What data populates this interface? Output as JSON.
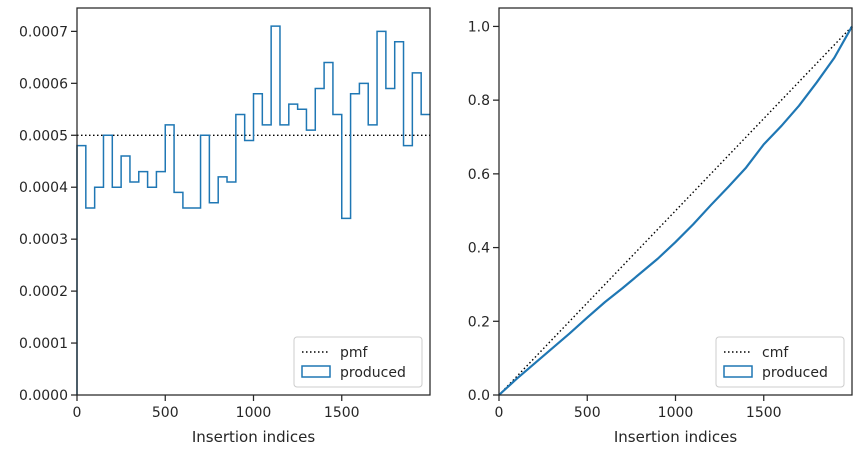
{
  "colors": {
    "series": "#1f77b4",
    "reference": "#000000",
    "axes": "#262626"
  },
  "chart_data": [
    {
      "type": "histogram-step",
      "xlabel": "Insertion indices",
      "ylabel": "",
      "xlim": [
        0,
        2000
      ],
      "ylim": [
        0,
        0.000745
      ],
      "xticks": [
        0,
        500,
        1000,
        1500
      ],
      "xtick_labels": [
        "0",
        "500",
        "1000",
        "1500"
      ],
      "yticks": [
        0,
        0.0001,
        0.0002,
        0.0003,
        0.0004,
        0.0005,
        0.0006,
        0.0007
      ],
      "ytick_labels": [
        "0.0000",
        "0.0001",
        "0.0002",
        "0.0003",
        "0.0004",
        "0.0005",
        "0.0006",
        "0.0007"
      ],
      "legend": {
        "position": "bottom-right",
        "entries": [
          "pmf",
          "produced"
        ]
      },
      "reference": {
        "name": "pmf",
        "style": "dotted",
        "value": 0.0005
      },
      "series": [
        {
          "name": "produced",
          "bin_width": 50,
          "bin_start": 0,
          "values": [
            0.00048,
            0.00036,
            0.0004,
            0.0005,
            0.0004,
            0.00046,
            0.00041,
            0.00043,
            0.0004,
            0.00043,
            0.00052,
            0.00039,
            0.00036,
            0.00036,
            0.0005,
            0.00037,
            0.00042,
            0.00041,
            0.00054,
            0.00049,
            0.00058,
            0.00052,
            0.00071,
            0.00052,
            0.00056,
            0.00055,
            0.00051,
            0.00059,
            0.00064,
            0.00054,
            0.00034,
            0.00058,
            0.0006,
            0.00052,
            0.0007,
            0.00059,
            0.00068,
            0.00048,
            0.00062,
            0.00054
          ]
        }
      ]
    },
    {
      "type": "line",
      "xlabel": "Insertion indices",
      "ylabel": "",
      "xlim": [
        0,
        2000
      ],
      "ylim": [
        0,
        1.05
      ],
      "xticks": [
        0,
        500,
        1000,
        1500
      ],
      "xtick_labels": [
        "0",
        "500",
        "1000",
        "1500"
      ],
      "yticks": [
        0,
        0.2,
        0.4,
        0.6,
        0.8,
        1.0
      ],
      "ytick_labels": [
        "0.0",
        "0.2",
        "0.4",
        "0.6",
        "0.8",
        "1.0"
      ],
      "legend": {
        "position": "bottom-right",
        "entries": [
          "cmf",
          "produced"
        ]
      },
      "reference": {
        "name": "cmf",
        "style": "dotted",
        "x": [
          0,
          2000
        ],
        "y": [
          0,
          1.0
        ]
      },
      "series": [
        {
          "name": "produced",
          "x": [
            0,
            100,
            200,
            300,
            400,
            500,
            600,
            700,
            800,
            900,
            1000,
            1100,
            1200,
            1300,
            1400,
            1500,
            1600,
            1700,
            1800,
            1900,
            2000
          ],
          "y": [
            0,
            0.044,
            0.085,
            0.126,
            0.167,
            0.21,
            0.252,
            0.29,
            0.33,
            0.37,
            0.415,
            0.463,
            0.515,
            0.565,
            0.617,
            0.68,
            0.73,
            0.785,
            0.848,
            0.915,
            1.0
          ]
        }
      ]
    }
  ]
}
